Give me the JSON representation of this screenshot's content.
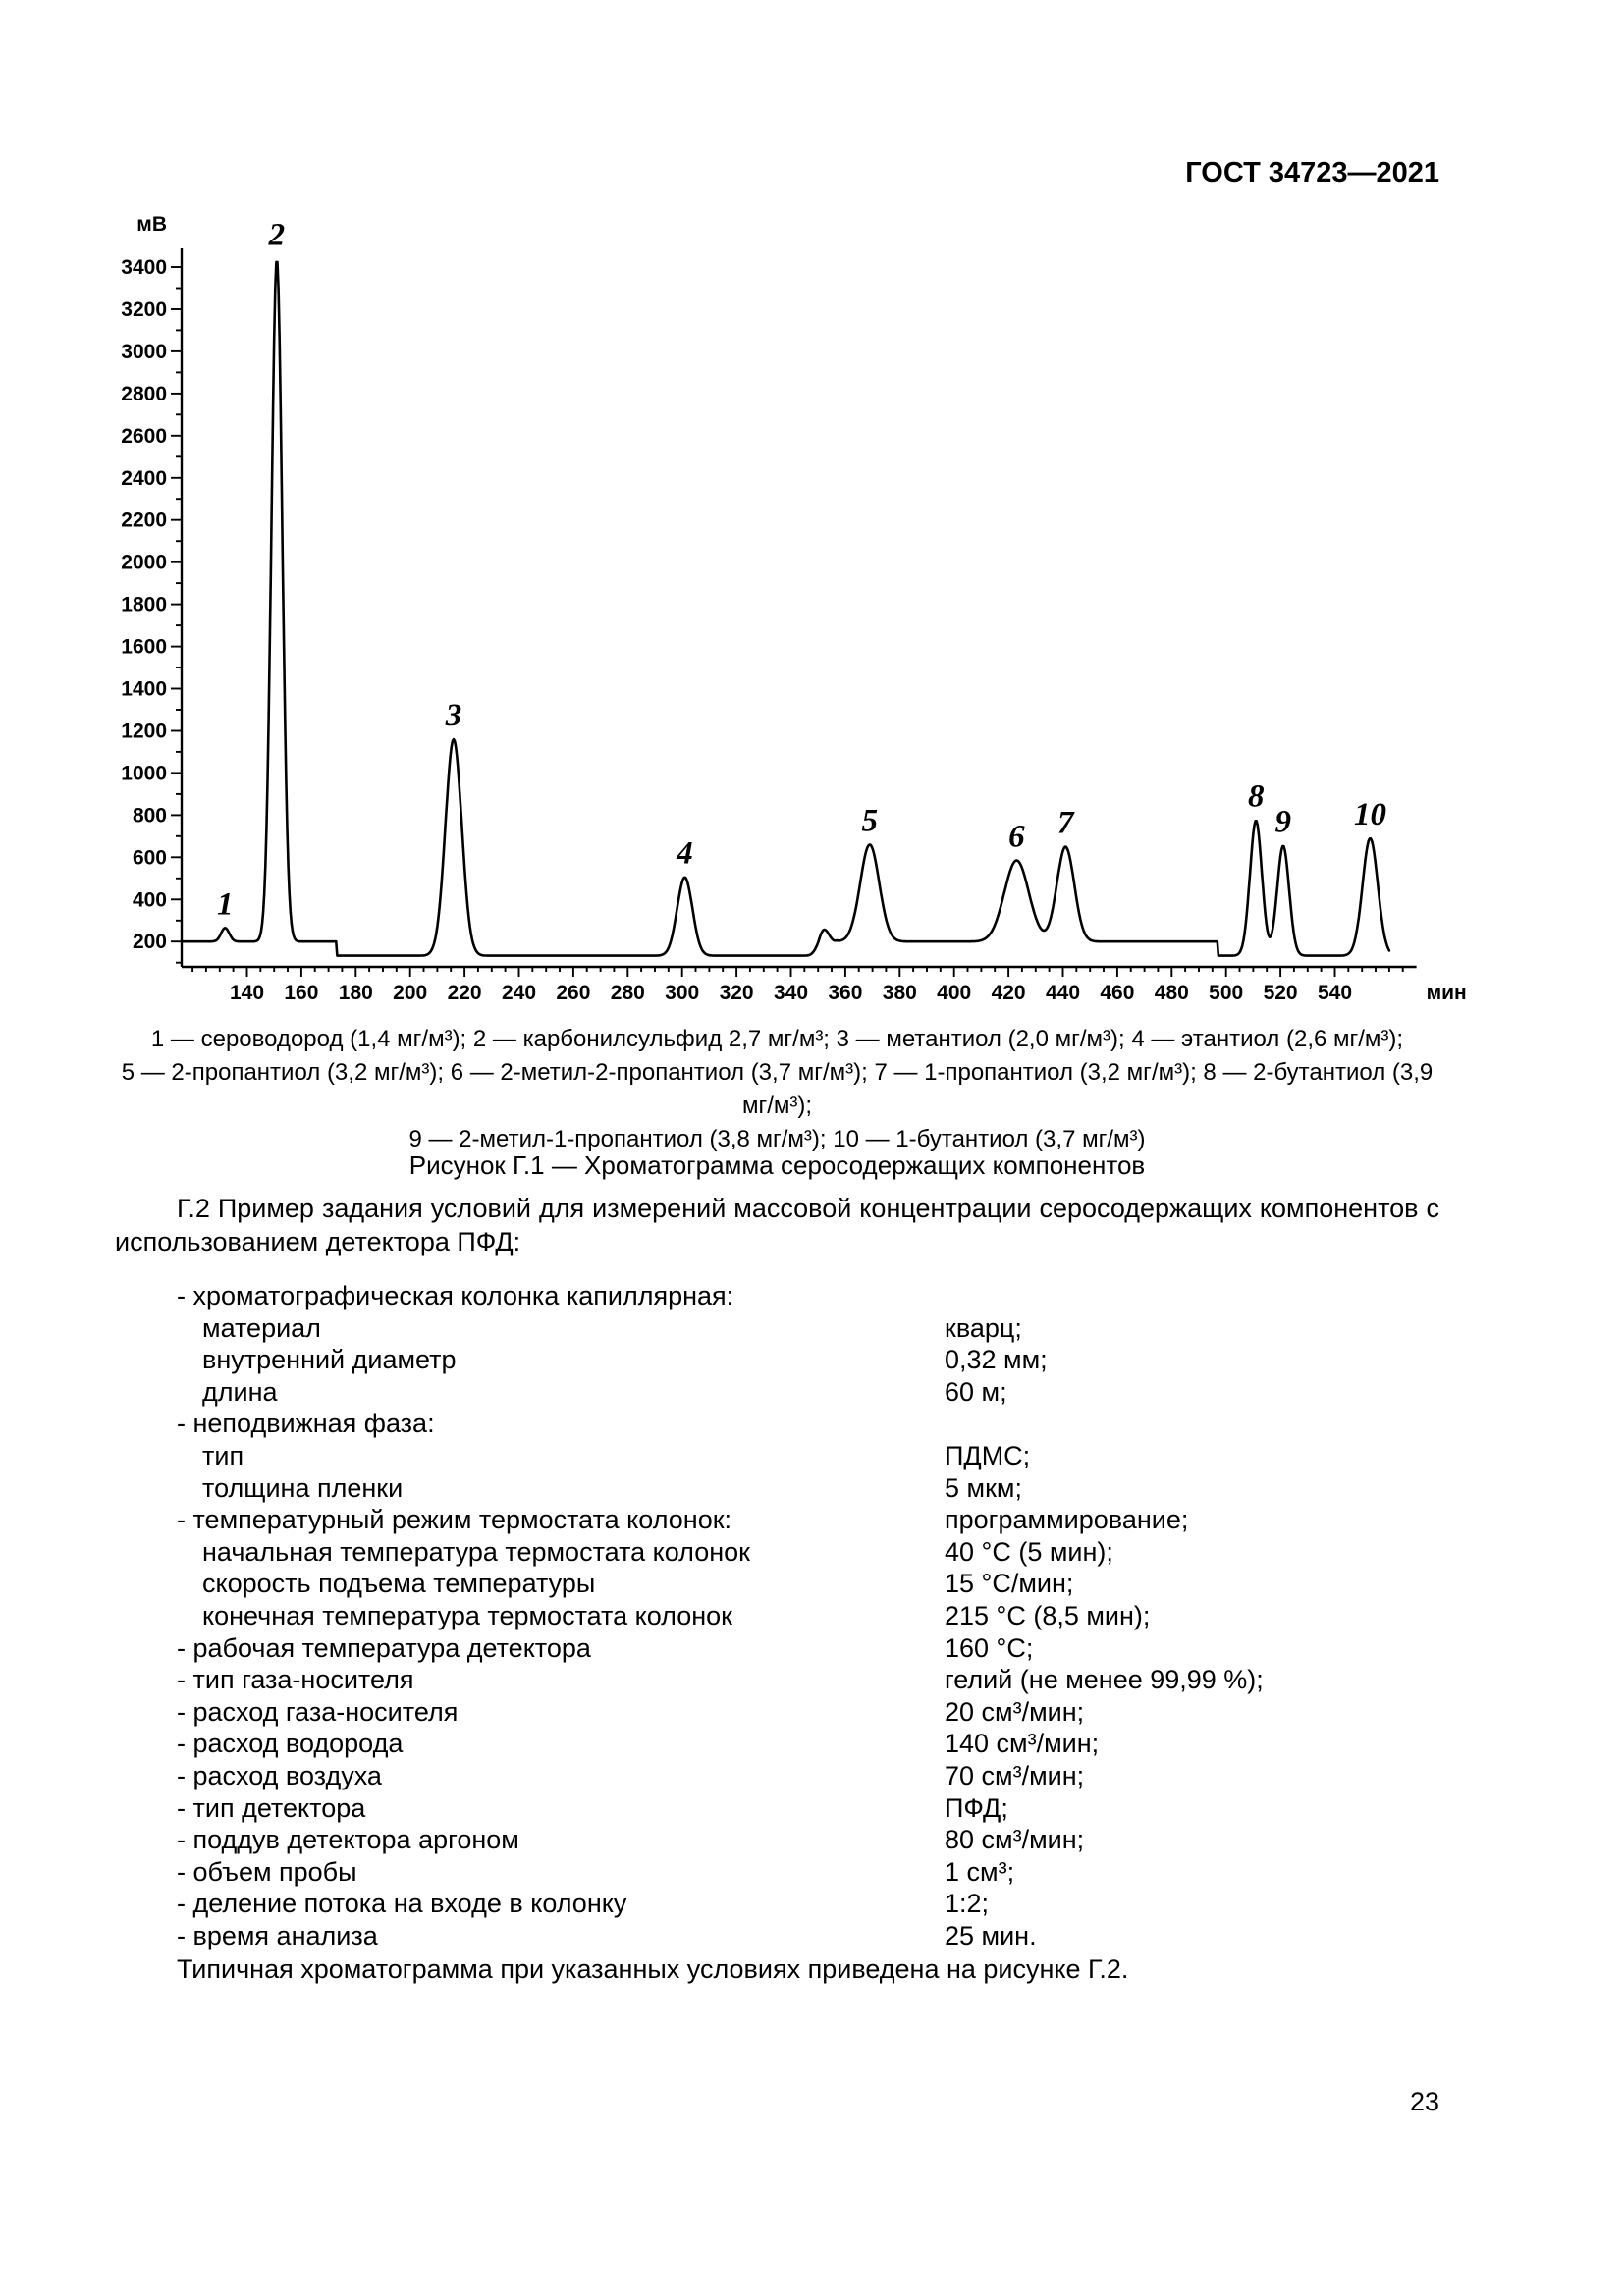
{
  "header": {
    "title": "ГОСТ 34723—2021"
  },
  "page": {
    "number": "23"
  },
  "figure": {
    "legend_lines": [
      "1 — сероводород (1,4 мг/м³); 2 — карбонилсульфид 2,7 мг/м³; 3 — метантиол (2,0 мг/м³); 4 — этантиол (2,6 мг/м³);",
      "5 — 2-пропантиол (3,2 мг/м³); 6 — 2-метил-2-пропантиол (3,7 мг/м³); 7 — 1-пропантиол (3,2 мг/м³); 8 — 2-бутантиол (3,9 мг/м³);",
      "9 — 2-метил-1-пропантиол (3,8 мг/м³); 10 — 1-бутантиол (3,7 мг/м³)"
    ],
    "caption": "Рисунок Г.1 — Хроматограмма серосодержащих компонентов"
  },
  "section": {
    "intro": "Г.2 Пример задания условий для измерений массовой концентрации серосодержащих компонентов с использованием детектора ПФД:",
    "rows": [
      {
        "label": "- хроматографическая колонка капиллярная:",
        "value": "",
        "indent": 1
      },
      {
        "label": "материал",
        "value": "кварц;",
        "indent": 2
      },
      {
        "label": "внутренний диаметр",
        "value": "0,32 мм;",
        "indent": 2
      },
      {
        "label": "длина",
        "value": "60 м;",
        "indent": 2
      },
      {
        "label": "- неподвижная фаза:",
        "value": "",
        "indent": 1
      },
      {
        "label": "тип",
        "value": "ПДМС;",
        "indent": 2
      },
      {
        "label": "толщина пленки",
        "value": "5 мкм;",
        "indent": 2
      },
      {
        "label": "- температурный режим термостата колонок:",
        "value": "программирование;",
        "indent": 1
      },
      {
        "label": "начальная температура термостата колонок",
        "value": "40 °С (5 мин);",
        "indent": 2
      },
      {
        "label": "скорость подъема температуры",
        "value": "15 °С/мин;",
        "indent": 2
      },
      {
        "label": "конечная температура термостата колонок",
        "value": "215 °С (8,5 мин);",
        "indent": 2
      },
      {
        "label": "- рабочая температура детектора",
        "value": "160 °С;",
        "indent": 1
      },
      {
        "label": "- тип газа-носителя",
        "value": "гелий (не менее 99,99 %);",
        "indent": 1
      },
      {
        "label": "- расход газа-носителя",
        "value": "20 см³/мин;",
        "indent": 1
      },
      {
        "label": "- расход водорода",
        "value": "140 см³/мин;",
        "indent": 1
      },
      {
        "label": "- расход воздуха",
        "value": "70 см³/мин;",
        "indent": 1
      },
      {
        "label": "- тип детектора",
        "value": "ПФД;",
        "indent": 1
      },
      {
        "label": "- поддув детектора аргоном",
        "value": "80 см³/мин;",
        "indent": 1
      },
      {
        "label": "- объем пробы",
        "value": "1 см³;",
        "indent": 1
      },
      {
        "label": "- деление потока на входе в колонку",
        "value": "1:2;",
        "indent": 1
      },
      {
        "label": "- время анализа",
        "value": "25 мин.",
        "indent": 1
      }
    ],
    "closing": "Типичная хроматограмма при указанных условиях приведена на рисунке Г.2."
  },
  "chart_data": {
    "type": "line",
    "title": "Хроматограмма серосодержащих компонентов",
    "xlabel": "мин",
    "ylabel": "мВ",
    "x_range": [
      116,
      570
    ],
    "y_range": [
      80,
      3500
    ],
    "x_major_ticks": [
      140,
      160,
      180,
      200,
      220,
      240,
      260,
      280,
      300,
      320,
      340,
      360,
      380,
      400,
      420,
      440,
      460,
      480,
      500,
      520,
      540
    ],
    "y_major_ticks": [
      200,
      400,
      600,
      800,
      1000,
      1200,
      1400,
      1600,
      1800,
      2000,
      2200,
      2400,
      2600,
      2800,
      3000,
      3200,
      3400
    ],
    "grid": false,
    "baseline_mv": [
      [
        116,
        200
      ],
      [
        173,
        200
      ],
      [
        173,
        133
      ],
      [
        350,
        133
      ],
      [
        357,
        200
      ],
      [
        497,
        200
      ],
      [
        497,
        133
      ],
      [
        560,
        133
      ]
    ],
    "peaks": [
      {
        "label": "1",
        "t": 132,
        "apex_mv": 265,
        "sigma": 1.5,
        "compound": "сероводород",
        "concentration": "1,4 мг/м³"
      },
      {
        "label": "2",
        "t": 151,
        "apex_mv": 3440,
        "sigma": 2.0,
        "compound": "карбонилсульфид",
        "concentration": "2,7 мг/м³"
      },
      {
        "label": "3",
        "t": 216,
        "apex_mv": 1160,
        "sigma": 3.0,
        "compound": "метантиол",
        "concentration": "2,0 мг/м³"
      },
      {
        "label": "4",
        "t": 301,
        "apex_mv": 505,
        "sigma": 2.8,
        "compound": "этантиол",
        "concentration": "2,6 мг/м³"
      },
      {
        "label": "5",
        "t": 369,
        "apex_mv": 660,
        "sigma": 3.5,
        "compound": "2-пропантиол",
        "concentration": "3,2 мг/м³"
      },
      {
        "label": "6",
        "t": 423,
        "apex_mv": 585,
        "sigma": 4.5,
        "compound": "2-метил-2-пропантиол",
        "concentration": "3,7 мг/м³"
      },
      {
        "label": "7",
        "t": 441,
        "apex_mv": 650,
        "sigma": 3.2,
        "compound": "1-пропантиол",
        "concentration": "3,2 мг/м³"
      },
      {
        "label": "8",
        "t": 511,
        "apex_mv": 775,
        "sigma": 2.2,
        "compound": "2-бутантиол",
        "concentration": "3,9 мг/м³"
      },
      {
        "label": "9",
        "t": 521,
        "apex_mv": 655,
        "sigma": 2.2,
        "compound": "2-метил-1-пропантиол",
        "concentration": "3,8 мг/м³"
      },
      {
        "label": "10",
        "t": 553,
        "apex_mv": 690,
        "sigma": 2.8,
        "compound": "1-бутантиол",
        "concentration": "3,7 мг/м³"
      },
      {
        "label": "",
        "t": 352,
        "apex_mv": 255,
        "sigma": 2.0,
        "compound": "",
        "concentration": ""
      }
    ]
  }
}
